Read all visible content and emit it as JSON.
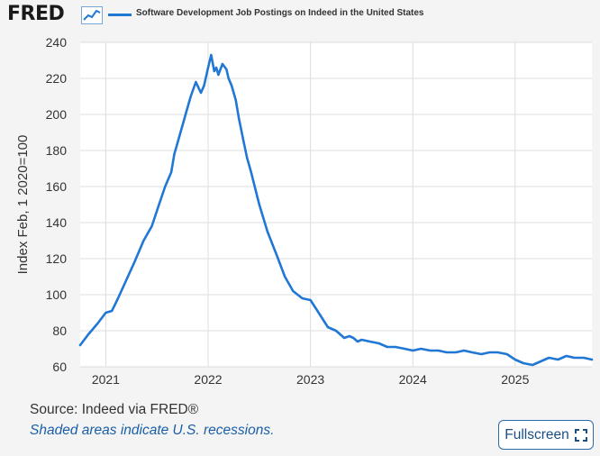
{
  "header": {
    "logo_text": "FRED",
    "series_title": "Software Development Job Postings on Indeed in the United States"
  },
  "footer": {
    "source": "Source: Indeed via FRED®",
    "recession_note": "Shaded areas indicate U.S. recessions.",
    "fullscreen_label": "Fullscreen"
  },
  "colors": {
    "line": "#2077d4",
    "plot_background": "#ffffff",
    "page_background": "#f4f4f4",
    "grid": "#dddddd"
  },
  "icons": {
    "logo_graph": "line-graph-icon",
    "fullscreen": "expand-icon"
  },
  "chart_data": {
    "type": "line",
    "title": "Software Development Job Postings on Indeed in the United States",
    "xlabel": "",
    "ylabel": "Index Feb, 1 2020=100",
    "ylim": [
      60,
      240
    ],
    "xlim": [
      2020.75,
      2025.75
    ],
    "yticks": [
      60,
      80,
      100,
      120,
      140,
      160,
      180,
      200,
      220,
      240
    ],
    "xticks": [
      {
        "value": 2021,
        "label": "2021"
      },
      {
        "value": 2022,
        "label": "2022"
      },
      {
        "value": 2023,
        "label": "2023"
      },
      {
        "value": 2024,
        "label": "2024"
      },
      {
        "value": 2025,
        "label": "2025"
      }
    ],
    "grid": true,
    "legend": "top-left",
    "series": [
      {
        "name": "Software Development Job Postings on Indeed in the United States",
        "color": "#2077d4",
        "x": [
          2020.75,
          2020.83,
          2020.92,
          2021.0,
          2021.06,
          2021.12,
          2021.2,
          2021.28,
          2021.37,
          2021.45,
          2021.52,
          2021.58,
          2021.64,
          2021.67,
          2021.72,
          2021.78,
          2021.83,
          2021.88,
          2021.93,
          2021.96,
          2022.0,
          2022.03,
          2022.06,
          2022.08,
          2022.1,
          2022.14,
          2022.18,
          2022.2,
          2022.23,
          2022.27,
          2022.3,
          2022.35,
          2022.38,
          2022.42,
          2022.5,
          2022.58,
          2022.67,
          2022.75,
          2022.83,
          2022.92,
          2023.0,
          2023.08,
          2023.17,
          2023.25,
          2023.33,
          2023.38,
          2023.42,
          2023.46,
          2023.5,
          2023.58,
          2023.67,
          2023.75,
          2023.83,
          2023.92,
          2024.0,
          2024.08,
          2024.17,
          2024.25,
          2024.33,
          2024.42,
          2024.5,
          2024.58,
          2024.67,
          2024.75,
          2024.83,
          2024.92,
          2025.0,
          2025.08,
          2025.17,
          2025.25,
          2025.33,
          2025.42,
          2025.5,
          2025.58,
          2025.67,
          2025.75
        ],
        "values": [
          72,
          78,
          84,
          90,
          91,
          98,
          108,
          118,
          130,
          138,
          150,
          160,
          168,
          178,
          188,
          200,
          210,
          218,
          212,
          216,
          226,
          233,
          224,
          226,
          222,
          228,
          225,
          220,
          216,
          208,
          198,
          184,
          176,
          168,
          150,
          135,
          122,
          110,
          102,
          98,
          97,
          90,
          82,
          80,
          76,
          77,
          76,
          74,
          75,
          74,
          73,
          71,
          71,
          70,
          69,
          70,
          69,
          69,
          68,
          68,
          69,
          68,
          67,
          68,
          68,
          67,
          64,
          62,
          61,
          63,
          65,
          64,
          66,
          65,
          65,
          64
        ]
      }
    ]
  }
}
